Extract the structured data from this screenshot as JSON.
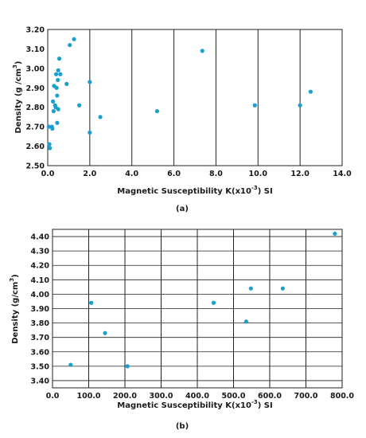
{
  "chart_data": [
    {
      "type": "scatter",
      "panel_label": "(a)",
      "xlabel_main": "Magnetic Susceptibility K(x10",
      "xlabel_sup": "-3",
      "xlabel_end": ") SI",
      "ylabel_main": "Density (g /cm",
      "ylabel_sup": "3",
      "ylabel_end": ")",
      "xlim": [
        0,
        14
      ],
      "ylim": [
        2.5,
        3.2
      ],
      "xticks": [
        0,
        2,
        4,
        6,
        8,
        10,
        12,
        14
      ],
      "xtick_labels": [
        "0.0",
        "2.0",
        "4.0",
        "6.0",
        "8.0",
        "10.0",
        "12.0",
        "14.0"
      ],
      "yticks": [
        2.5,
        2.6,
        2.7,
        2.8,
        2.9,
        3.0,
        3.1,
        3.2
      ],
      "ytick_labels": [
        "2.50",
        "2.60",
        "2.70",
        "2.80",
        "2.90",
        "3.00",
        "3.10",
        "3.20"
      ],
      "ytick_extra_label": "3.20",
      "grid": "x",
      "marker_color": "#1aa0cc",
      "points": [
        {
          "x": 0.05,
          "y": 2.7
        },
        {
          "x": 0.08,
          "y": 2.61
        },
        {
          "x": 0.1,
          "y": 2.59
        },
        {
          "x": 0.2,
          "y": 2.7
        },
        {
          "x": 0.22,
          "y": 2.69
        },
        {
          "x": 0.25,
          "y": 2.83
        },
        {
          "x": 0.28,
          "y": 2.78
        },
        {
          "x": 0.3,
          "y": 2.91
        },
        {
          "x": 0.35,
          "y": 2.81
        },
        {
          "x": 0.38,
          "y": 2.8
        },
        {
          "x": 0.4,
          "y": 2.97
        },
        {
          "x": 0.42,
          "y": 2.9
        },
        {
          "x": 0.45,
          "y": 2.86
        },
        {
          "x": 0.45,
          "y": 2.72
        },
        {
          "x": 0.48,
          "y": 2.94
        },
        {
          "x": 0.5,
          "y": 2.99
        },
        {
          "x": 0.5,
          "y": 2.79
        },
        {
          "x": 0.55,
          "y": 3.05
        },
        {
          "x": 0.6,
          "y": 2.97
        },
        {
          "x": 0.9,
          "y": 2.92
        },
        {
          "x": 1.05,
          "y": 3.12
        },
        {
          "x": 1.25,
          "y": 3.15
        },
        {
          "x": 1.5,
          "y": 2.81
        },
        {
          "x": 2.0,
          "y": 2.93
        },
        {
          "x": 2.0,
          "y": 2.67
        },
        {
          "x": 2.5,
          "y": 2.75
        },
        {
          "x": 5.2,
          "y": 2.78
        },
        {
          "x": 7.35,
          "y": 3.09
        },
        {
          "x": 9.85,
          "y": 2.81
        },
        {
          "x": 12.0,
          "y": 2.81
        },
        {
          "x": 12.5,
          "y": 2.88
        }
      ]
    },
    {
      "type": "scatter",
      "panel_label": "(b)",
      "xlabel_main": "Magnetic Susceptibility K(x10",
      "xlabel_sup": "-3",
      "xlabel_end": ") SI",
      "ylabel_main": "Density (g/cm",
      "ylabel_sup": "3",
      "ylabel_end": ")",
      "xlim": [
        0,
        800
      ],
      "ylim": [
        3.35,
        4.45
      ],
      "xticks": [
        0,
        100,
        200,
        300,
        400,
        500,
        600,
        700,
        800
      ],
      "xtick_labels": [
        "0.0",
        "100.0",
        "200.0",
        "300.0",
        "400.0",
        "500.0",
        "600.0",
        "700.0",
        "800.0"
      ],
      "yticks": [
        3.4,
        3.5,
        3.6,
        3.7,
        3.8,
        3.9,
        4.0,
        4.1,
        4.2,
        4.3,
        4.4
      ],
      "ytick_labels": [
        "3.40",
        "3.50",
        "3.60",
        "3.70",
        "3.80",
        "3.90",
        "4.00",
        "4.10",
        "4.20",
        "4.30",
        "4.40"
      ],
      "grid": "both",
      "marker_color": "#1aa0cc",
      "points": [
        {
          "x": 50,
          "y": 3.51
        },
        {
          "x": 107,
          "y": 3.94
        },
        {
          "x": 145,
          "y": 3.73
        },
        {
          "x": 207,
          "y": 3.5
        },
        {
          "x": 445,
          "y": 3.94
        },
        {
          "x": 535,
          "y": 3.81
        },
        {
          "x": 548,
          "y": 4.04
        },
        {
          "x": 636,
          "y": 4.04
        },
        {
          "x": 780,
          "y": 4.42
        }
      ]
    }
  ]
}
